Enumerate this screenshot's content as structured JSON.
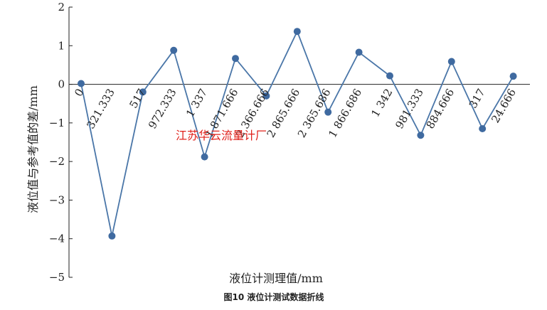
{
  "chart_data": {
    "type": "line",
    "title": "",
    "caption": "图10 液位计测试数据折线",
    "xlabel": "液位计测理值/mm",
    "ylabel": "液位值与参考值的差/mm",
    "ylim": [
      -5,
      2
    ],
    "yticks": [
      "2",
      "1",
      "0",
      "−1",
      "−2",
      "−3",
      "−4",
      "−5"
    ],
    "grid": false,
    "categories": [
      "0",
      "321.333",
      "517",
      "972.333",
      "1 337",
      "1 871.666",
      "2 366.666",
      "2 865.666",
      "2 365.686",
      "1 866.686",
      "1 342",
      "981.333",
      "884.666",
      "317",
      "24.666"
    ],
    "values": [
      0.02,
      -3.93,
      -0.2,
      0.88,
      -1.88,
      0.67,
      -0.3,
      1.37,
      -0.72,
      0.83,
      0.22,
      -1.32,
      0.59,
      -1.15,
      0.21
    ],
    "line_color": "#4a76a8",
    "marker_color": "#3f6aa0",
    "watermark": "江苏华云流量计厂"
  }
}
